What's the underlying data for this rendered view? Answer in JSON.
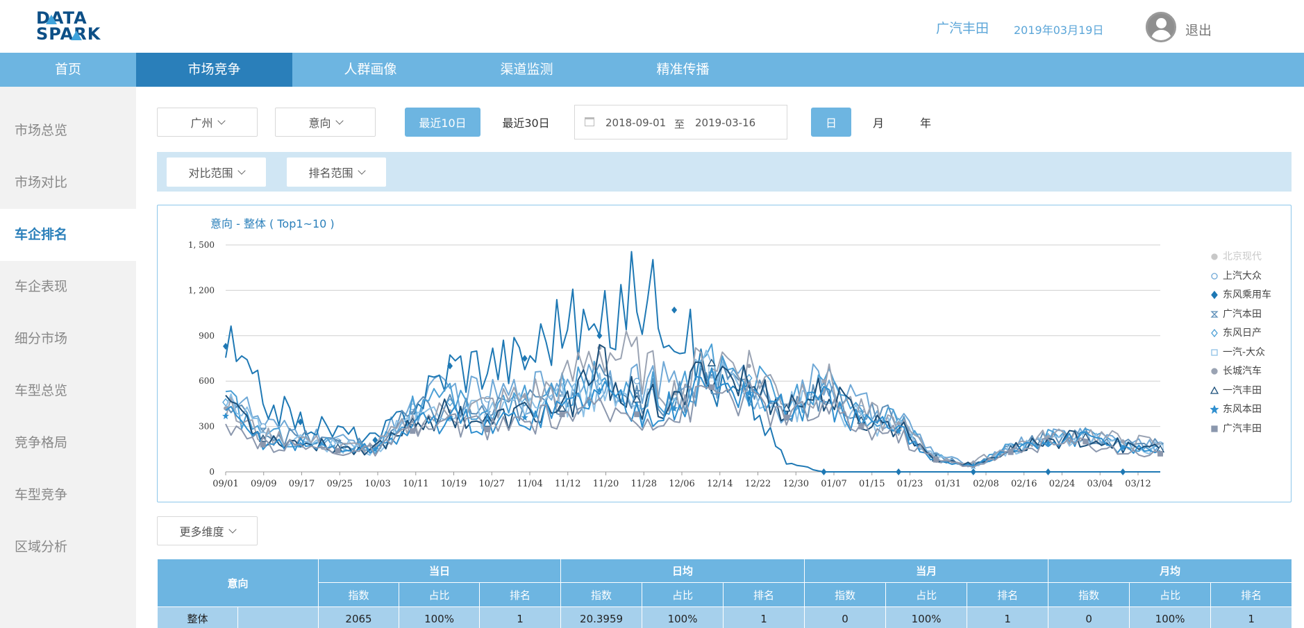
{
  "header": {
    "logo_line1": "DATA",
    "logo_line2": "SPARK",
    "brand": "广汽丰田",
    "date": "2019年03月19日",
    "logout": "退出"
  },
  "nav": {
    "items": [
      {
        "label": "首页"
      },
      {
        "label": "市场竞争"
      },
      {
        "label": "人群画像"
      },
      {
        "label": "渠道监测"
      },
      {
        "label": "精准传播"
      }
    ],
    "active": 1
  },
  "sidebar": {
    "items": [
      {
        "label": "市场总览"
      },
      {
        "label": "市场对比"
      },
      {
        "label": "车企排名"
      },
      {
        "label": "车企表现"
      },
      {
        "label": "细分市场"
      },
      {
        "label": "车型总览"
      },
      {
        "label": "竞争格局"
      },
      {
        "label": "车型竞争"
      },
      {
        "label": "区域分析"
      }
    ],
    "active": 2
  },
  "filters": {
    "city": "广州",
    "intent": "意向",
    "recent10": "最近10日",
    "recent30": "最近30日",
    "date_start": "2018-09-01",
    "date_sep": "至",
    "date_end": "2019-03-16",
    "gran_day": "日",
    "gran_month": "月",
    "gran_year": "年",
    "compare_range": "对比范围",
    "rank_range": "排名范围",
    "more_dims": "更多维度"
  },
  "chart_data": {
    "type": "line",
    "title": "意向 - 整体 ( Top1~10 )",
    "x_ticks": [
      "09/01",
      "09/09",
      "09/17",
      "09/25",
      "10/03",
      "10/11",
      "10/19",
      "10/27",
      "11/04",
      "11/12",
      "11/20",
      "11/28",
      "12/06",
      "12/14",
      "12/22",
      "12/30",
      "01/07",
      "01/15",
      "01/23",
      "01/31",
      "02/08",
      "02/16",
      "02/24",
      "03/04",
      "03/12"
    ],
    "y_ticks": [
      "0",
      "300",
      "600",
      "900",
      "1, 200",
      "1, 500"
    ],
    "ylim": [
      0,
      1500
    ],
    "legend_position": "right",
    "x": [
      "09/01",
      "09/09",
      "09/17",
      "09/25",
      "10/03",
      "10/11",
      "10/19",
      "10/27",
      "11/04",
      "11/12",
      "11/20",
      "11/28",
      "12/06",
      "12/14",
      "12/22",
      "12/30",
      "01/07",
      "01/15",
      "01/23",
      "01/31",
      "02/08",
      "02/16",
      "02/24",
      "03/04",
      "03/12",
      "03/16"
    ],
    "series": [
      {
        "name": "北京现代",
        "color": "#d0d0d0",
        "marker": "circle",
        "visible": false,
        "values": [
          300,
          220,
          200,
          180,
          170,
          230,
          280,
          260,
          300,
          320,
          330,
          340,
          330,
          400,
          420,
          380,
          350,
          300,
          270,
          90,
          50,
          110,
          180,
          160,
          160,
          150
        ]
      },
      {
        "name": "上汽大众",
        "color": "#6fa8d6",
        "marker": "circle-open",
        "visible": true,
        "values": [
          560,
          300,
          250,
          200,
          180,
          430,
          540,
          480,
          520,
          600,
          640,
          600,
          560,
          650,
          560,
          420,
          620,
          420,
          360,
          110,
          40,
          170,
          230,
          250,
          200,
          180
        ]
      },
      {
        "name": "东风乘用车",
        "color": "#1e78b4",
        "marker": "diamond",
        "visible": true,
        "values": [
          830,
          480,
          330,
          270,
          210,
          430,
          700,
          730,
          750,
          1010,
          900,
          1220,
          1070,
          560,
          480,
          60,
          0,
          0,
          0,
          0,
          0,
          0,
          0,
          0,
          0,
          0
        ]
      },
      {
        "name": "广汽本田",
        "color": "#5e8fb8",
        "marker": "bowtie",
        "visible": true,
        "values": [
          430,
          270,
          220,
          190,
          170,
          380,
          430,
          380,
          440,
          490,
          560,
          520,
          480,
          640,
          580,
          430,
          520,
          380,
          340,
          100,
          40,
          160,
          220,
          240,
          180,
          170
        ]
      },
      {
        "name": "东风日产",
        "color": "#4b9fd5",
        "marker": "diamond-open",
        "visible": true,
        "values": [
          460,
          260,
          200,
          180,
          160,
          400,
          460,
          400,
          460,
          520,
          600,
          560,
          500,
          700,
          620,
          450,
          560,
          400,
          330,
          100,
          50,
          160,
          230,
          260,
          190,
          170
        ]
      },
      {
        "name": "一汽-大众",
        "color": "#8ec1e6",
        "marker": "square-open",
        "visible": true,
        "values": [
          580,
          240,
          200,
          170,
          150,
          360,
          420,
          360,
          420,
          480,
          520,
          420,
          460,
          680,
          600,
          420,
          480,
          330,
          300,
          90,
          40,
          150,
          210,
          230,
          170,
          160
        ]
      },
      {
        "name": "长城汽车",
        "color": "#9aa3b3",
        "marker": "pin",
        "visible": true,
        "values": [
          420,
          230,
          220,
          160,
          170,
          330,
          400,
          430,
          500,
          560,
          820,
          720,
          520,
          760,
          700,
          500,
          600,
          380,
          320,
          80,
          60,
          170,
          230,
          260,
          200,
          190
        ]
      },
      {
        "name": "一汽丰田",
        "color": "#1b4f7a",
        "marker": "triangle-open",
        "visible": true,
        "values": [
          520,
          220,
          190,
          160,
          150,
          330,
          400,
          320,
          380,
          420,
          680,
          480,
          420,
          720,
          560,
          420,
          520,
          340,
          300,
          90,
          40,
          150,
          200,
          230,
          170,
          150
        ]
      },
      {
        "name": "东风本田",
        "color": "#2f8fcf",
        "marker": "star",
        "visible": true,
        "values": [
          370,
          200,
          180,
          150,
          150,
          300,
          360,
          300,
          360,
          420,
          540,
          400,
          420,
          600,
          520,
          400,
          460,
          320,
          270,
          80,
          40,
          140,
          190,
          220,
          160,
          140
        ]
      },
      {
        "name": "广汽丰田",
        "color": "#8b97ad",
        "marker": "square",
        "visible": true,
        "values": [
          260,
          180,
          170,
          140,
          140,
          270,
          330,
          280,
          330,
          380,
          400,
          380,
          360,
          560,
          480,
          360,
          420,
          300,
          250,
          80,
          40,
          130,
          180,
          200,
          140,
          120
        ]
      }
    ]
  },
  "table": {
    "corner": "意向",
    "groups": [
      "当日",
      "日均",
      "当月",
      "月均"
    ],
    "subheaders": [
      "指数",
      "占比",
      "排名"
    ],
    "rows": [
      {
        "name": "整体",
        "sub": "",
        "values": [
          "2065",
          "100%",
          "1",
          "20.3959",
          "100%",
          "1",
          "0",
          "100%",
          "1",
          "0",
          "100%",
          "1"
        ]
      }
    ]
  }
}
